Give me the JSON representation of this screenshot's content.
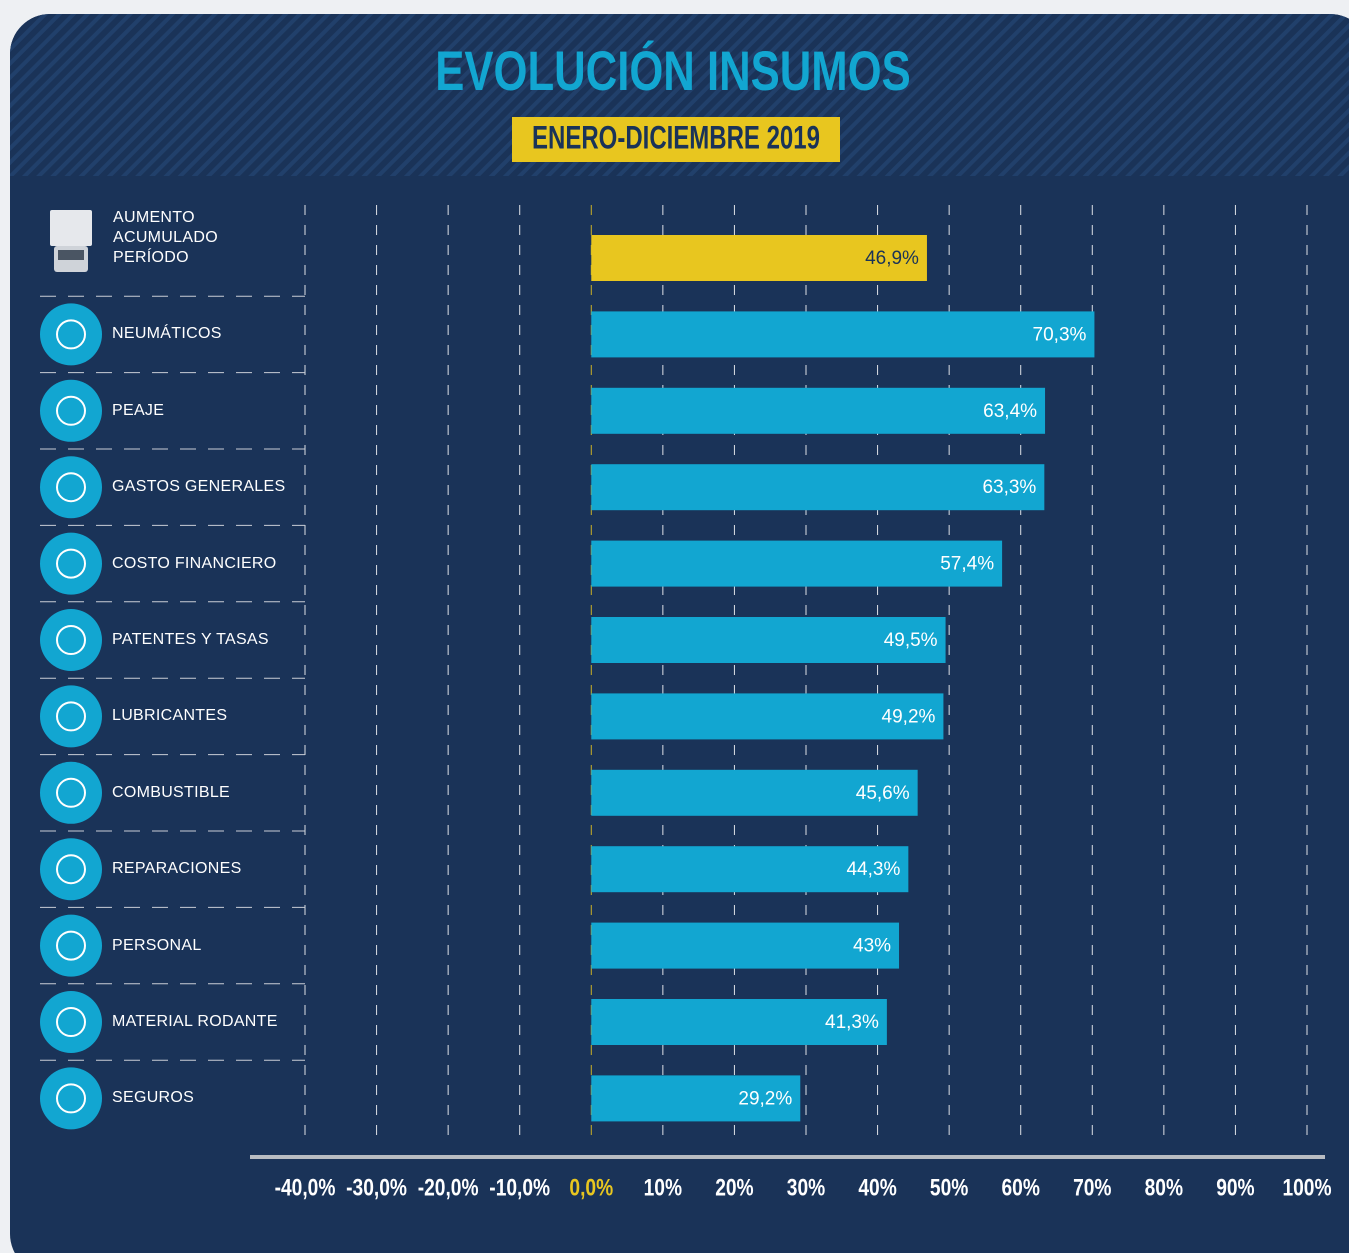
{
  "chart_data": {
    "type": "barh",
    "title": "EVOLUCIÓN INSUMOS",
    "subtitle": "ENERO-DICIEMBRE 2019",
    "categories": [
      "AUMENTO ACUMULADO PERÍODO",
      "NEUMÁTICOS",
      "PEAJE",
      "GASTOS GENERALES",
      "COSTO FINANCIERO",
      "PATENTES Y TASAS",
      "LUBRICANTES",
      "COMBUSTIBLE",
      "REPARACIONES",
      "PERSONAL",
      "MATERIAL RODANTE",
      "SEGUROS"
    ],
    "values": [
      46.9,
      70.3,
      63.4,
      63.3,
      57.4,
      49.5,
      49.2,
      45.6,
      44.3,
      43,
      41.3,
      29.2
    ],
    "value_labels": [
      "46,9%",
      "70,3%",
      "63,4%",
      "63,3%",
      "57,4%",
      "49,5%",
      "49,2%",
      "45,6%",
      "44,3%",
      "43%",
      "41,3%",
      "29,2%"
    ],
    "colors": [
      "#e8c61f",
      "#12a6d1",
      "#12a6d1",
      "#12a6d1",
      "#12a6d1",
      "#12a6d1",
      "#12a6d1",
      "#12a6d1",
      "#12a6d1",
      "#12a6d1",
      "#12a6d1",
      "#12a6d1"
    ],
    "xlim": [
      -40,
      100
    ],
    "xticks": [
      {
        "value": -40,
        "label": "-40,0%"
      },
      {
        "value": -30,
        "label": "-30,0%"
      },
      {
        "value": -20,
        "label": "-20,0%"
      },
      {
        "value": -10,
        "label": "-10,0%"
      },
      {
        "value": 0,
        "label": "0,0%"
      },
      {
        "value": 10,
        "label": "10%"
      },
      {
        "value": 20,
        "label": "20%"
      },
      {
        "value": 30,
        "label": "30%"
      },
      {
        "value": 40,
        "label": "40%"
      },
      {
        "value": 50,
        "label": "50%"
      },
      {
        "value": 60,
        "label": "60%"
      },
      {
        "value": 70,
        "label": "70%"
      },
      {
        "value": 80,
        "label": "80%"
      },
      {
        "value": 90,
        "label": "90%"
      },
      {
        "value": 100,
        "label": "100%"
      }
    ],
    "grid": true
  }
}
